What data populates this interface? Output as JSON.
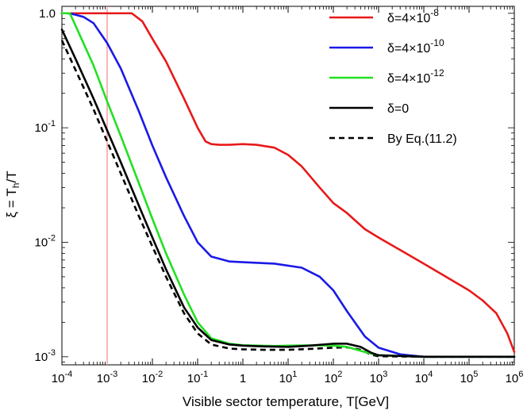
{
  "chart_data": {
    "type": "line",
    "xlabel": "Visible sector temperature, T[GeV]",
    "ylabel": {
      "pre": "ξ = T",
      "sub": "h",
      "post": "/T"
    },
    "xscale": "log",
    "yscale": "log",
    "xlim": [
      0.0001,
      1000000
    ],
    "ylim": [
      0.00085,
      1.15
    ],
    "x_ticks": [
      {
        "base": "10",
        "exp": "-4",
        "value": 0.0001
      },
      {
        "base": "10",
        "exp": "-3",
        "value": 0.001
      },
      {
        "base": "10",
        "exp": "-2",
        "value": 0.01
      },
      {
        "base": "10",
        "exp": "-1",
        "value": 0.1
      },
      {
        "base": "1",
        "exp": "",
        "value": 1
      },
      {
        "base": "10",
        "exp": "1",
        "value": 10
      },
      {
        "base": "10",
        "exp": "2",
        "value": 100
      },
      {
        "base": "10",
        "exp": "3",
        "value": 1000
      },
      {
        "base": "10",
        "exp": "4",
        "value": 10000
      },
      {
        "base": "10",
        "exp": "5",
        "value": 100000
      },
      {
        "base": "10",
        "exp": "6",
        "value": 1000000
      }
    ],
    "y_ticks": [
      {
        "base": "10",
        "exp": "-3",
        "value": 0.001
      },
      {
        "base": "10",
        "exp": "-2",
        "value": 0.01
      },
      {
        "base": "10",
        "exp": "-1",
        "value": 0.1
      },
      {
        "base": "1.0",
        "exp": "",
        "value": 1
      }
    ],
    "vertical_line": {
      "x": 0.001,
      "color": "#f4a0a0"
    },
    "legend_position": "top-right",
    "series": [
      {
        "name": "δ=4×10",
        "name_exp": "-8",
        "color": "#e8191a",
        "dash": "",
        "points": [
          [
            0.0001,
            1.0
          ],
          [
            0.001,
            1.0
          ],
          [
            0.0035,
            1.0
          ],
          [
            0.006,
            0.85
          ],
          [
            0.01,
            0.6
          ],
          [
            0.02,
            0.38
          ],
          [
            0.05,
            0.18
          ],
          [
            0.1,
            0.1
          ],
          [
            0.15,
            0.076
          ],
          [
            0.2,
            0.072
          ],
          [
            0.3,
            0.071
          ],
          [
            0.5,
            0.071
          ],
          [
            1,
            0.072
          ],
          [
            2,
            0.071
          ],
          [
            5,
            0.067
          ],
          [
            10,
            0.058
          ],
          [
            20,
            0.046
          ],
          [
            50,
            0.03
          ],
          [
            100,
            0.022
          ],
          [
            200,
            0.018
          ],
          [
            500,
            0.013
          ],
          [
            1000,
            0.011
          ],
          [
            10000,
            0.0065
          ],
          [
            100000,
            0.0038
          ],
          [
            200000,
            0.0031
          ],
          [
            400000,
            0.0024
          ],
          [
            700000,
            0.0016
          ],
          [
            1000000,
            0.0011
          ]
        ]
      },
      {
        "name": "δ=4×10",
        "name_exp": "-10",
        "color": "#1a1ae6",
        "dash": "",
        "points": [
          [
            0.0001,
            1.0
          ],
          [
            0.00013,
            1.0
          ],
          [
            0.00016,
            0.99
          ],
          [
            0.0002,
            0.97
          ],
          [
            0.0003,
            0.93
          ],
          [
            0.0005,
            0.82
          ],
          [
            0.001,
            0.55
          ],
          [
            0.002,
            0.33
          ],
          [
            0.005,
            0.14
          ],
          [
            0.01,
            0.07
          ],
          [
            0.02,
            0.037
          ],
          [
            0.05,
            0.017
          ],
          [
            0.1,
            0.01
          ],
          [
            0.2,
            0.0075
          ],
          [
            0.5,
            0.0068
          ],
          [
            1,
            0.0067
          ],
          [
            5,
            0.0065
          ],
          [
            20,
            0.006
          ],
          [
            50,
            0.005
          ],
          [
            100,
            0.0038
          ],
          [
            200,
            0.0025
          ],
          [
            500,
            0.0015
          ],
          [
            1000,
            0.0012
          ],
          [
            3000,
            0.00105
          ],
          [
            10000,
            0.001
          ],
          [
            1000000,
            0.001
          ]
        ]
      },
      {
        "name": "δ=4×10",
        "name_exp": "-12",
        "color": "#22e022",
        "dash": "",
        "points": [
          [
            0.0001,
            1.0
          ],
          [
            0.00015,
            1.0
          ],
          [
            0.0002,
            0.78
          ],
          [
            0.0005,
            0.35
          ],
          [
            0.001,
            0.17
          ],
          [
            0.002,
            0.085
          ],
          [
            0.005,
            0.033
          ],
          [
            0.01,
            0.016
          ],
          [
            0.02,
            0.008
          ],
          [
            0.05,
            0.0035
          ],
          [
            0.1,
            0.002
          ],
          [
            0.2,
            0.00145
          ],
          [
            0.5,
            0.0013
          ],
          [
            1,
            0.00126
          ],
          [
            5,
            0.00124
          ],
          [
            10,
            0.00125
          ],
          [
            50,
            0.00126
          ],
          [
            100,
            0.00125
          ],
          [
            200,
            0.00122
          ],
          [
            500,
            0.0011
          ],
          [
            1000,
            0.00103
          ],
          [
            10000,
            0.001
          ],
          [
            1000000,
            0.001
          ]
        ]
      },
      {
        "name": "δ=0",
        "name_exp": "",
        "color": "#000000",
        "dash": "",
        "points": [
          [
            0.0001,
            0.72
          ],
          [
            0.0002,
            0.4
          ],
          [
            0.0005,
            0.18
          ],
          [
            0.001,
            0.095
          ],
          [
            0.002,
            0.05
          ],
          [
            0.005,
            0.021
          ],
          [
            0.01,
            0.011
          ],
          [
            0.02,
            0.0058
          ],
          [
            0.05,
            0.0027
          ],
          [
            0.1,
            0.0018
          ],
          [
            0.2,
            0.0014
          ],
          [
            0.5,
            0.00128
          ],
          [
            1,
            0.00125
          ],
          [
            3,
            0.00123
          ],
          [
            10,
            0.00122
          ],
          [
            30,
            0.00125
          ],
          [
            100,
            0.0013
          ],
          [
            200,
            0.0013
          ],
          [
            400,
            0.00122
          ],
          [
            700,
            0.00108
          ],
          [
            1000,
            0.00103
          ],
          [
            10000,
            0.001
          ],
          [
            1000000,
            0.001
          ]
        ]
      },
      {
        "name": "By Eq.(11.2)",
        "name_exp": "",
        "color": "#000000",
        "dash": "7,5",
        "points": [
          [
            0.0001,
            0.58
          ],
          [
            0.0002,
            0.32
          ],
          [
            0.0005,
            0.145
          ],
          [
            0.001,
            0.076
          ],
          [
            0.002,
            0.04
          ],
          [
            0.005,
            0.017
          ],
          [
            0.01,
            0.0092
          ],
          [
            0.02,
            0.005
          ],
          [
            0.05,
            0.0024
          ],
          [
            0.1,
            0.0016
          ],
          [
            0.2,
            0.00128
          ],
          [
            0.5,
            0.00118
          ],
          [
            1,
            0.00116
          ],
          [
            3,
            0.00115
          ],
          [
            10,
            0.00115
          ],
          [
            30,
            0.00117
          ],
          [
            100,
            0.0012
          ],
          [
            200,
            0.00121
          ],
          [
            400,
            0.00115
          ],
          [
            700,
            0.00104
          ],
          [
            1000,
            0.00101
          ],
          [
            10000,
            0.001
          ],
          [
            1000000,
            0.001
          ]
        ]
      }
    ]
  }
}
